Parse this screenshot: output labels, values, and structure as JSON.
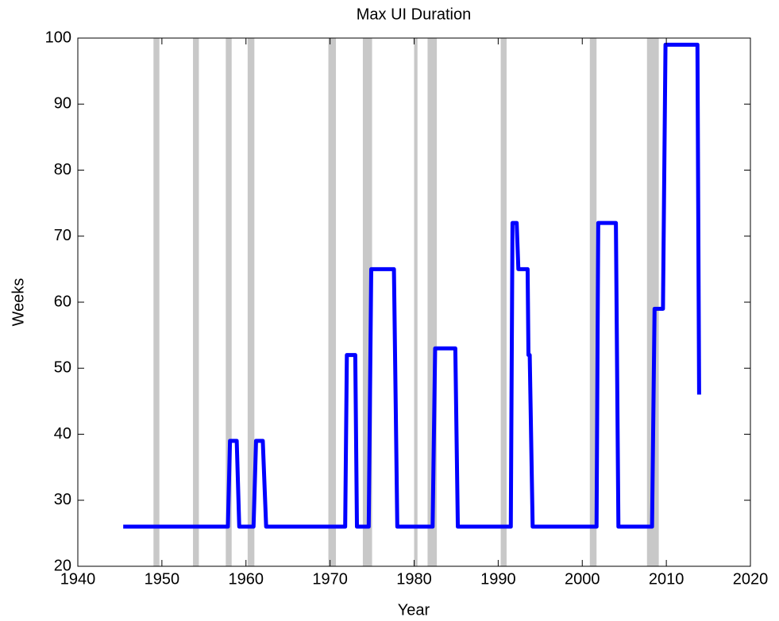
{
  "chart_data": {
    "type": "line",
    "title": "Max UI Duration",
    "x_label": "Year",
    "y_label": "Weeks",
    "xlim": [
      1940,
      2020
    ],
    "xticks": [
      1940,
      1950,
      1960,
      1970,
      1980,
      1990,
      2000,
      2010,
      2020
    ],
    "ylim": [
      20,
      100
    ],
    "yticks": [
      20,
      30,
      40,
      50,
      60,
      70,
      80,
      90,
      100
    ],
    "shaded_color": "#c8c8c8",
    "shaded_regions": [
      [
        1949.0,
        1949.7
      ],
      [
        1953.7,
        1954.4
      ],
      [
        1957.6,
        1958.3
      ],
      [
        1960.2,
        1961.0
      ],
      [
        1969.8,
        1970.7
      ],
      [
        1973.9,
        1975.0
      ],
      [
        1980.0,
        1980.4
      ],
      [
        1981.6,
        1982.7
      ],
      [
        1990.3,
        1991.0
      ],
      [
        2000.9,
        2001.7
      ],
      [
        2007.7,
        2009.1
      ]
    ],
    "series": [
      {
        "color": "#0000ff",
        "x": [
          1945.4,
          1957.85,
          1958.1,
          1958.9,
          1959.2,
          1960.9,
          1961.2,
          1962.0,
          1962.4,
          1971.8,
          1972.0,
          1973.0,
          1973.2,
          1974.6,
          1974.9,
          1977.6,
          1978.0,
          1982.2,
          1982.5,
          1984.9,
          1985.2,
          1991.5,
          1991.7,
          1992.2,
          1992.4,
          1993.5,
          1993.6,
          1993.75,
          1994.1,
          2001.7,
          2001.9,
          2004.0,
          2004.3,
          2008.3,
          2008.6,
          2009.6,
          2009.9,
          2013.7,
          2013.9
        ],
        "values": [
          26,
          26,
          39,
          39,
          26,
          26,
          39,
          39,
          26,
          26,
          52,
          52,
          26,
          26,
          65,
          65,
          26,
          26,
          53,
          53,
          26,
          26,
          72,
          72,
          65,
          65,
          52,
          52,
          26,
          26,
          72,
          72,
          26,
          26,
          59,
          59,
          99,
          99,
          46
        ]
      }
    ]
  }
}
